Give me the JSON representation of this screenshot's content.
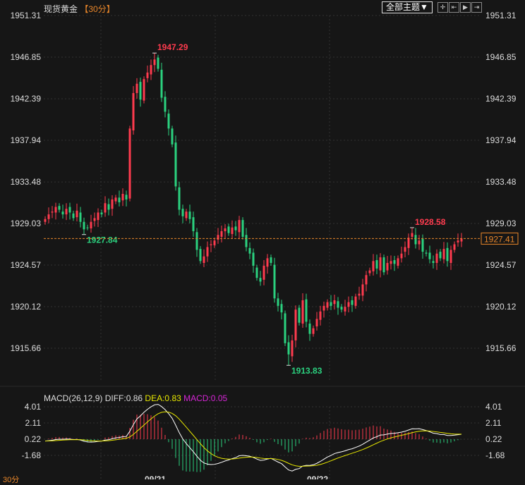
{
  "header": {
    "title": "现货黄金",
    "period": "【30分】",
    "theme_button": "全部主题▼",
    "tools": [
      {
        "icon": "crosshair-icon",
        "glyph": "✛"
      },
      {
        "icon": "zoom-range-icon",
        "glyph": "⇤"
      },
      {
        "icon": "step-forward-icon",
        "glyph": "▶"
      },
      {
        "icon": "jump-end-icon",
        "glyph": "⇥"
      }
    ]
  },
  "colors": {
    "up": "#ff3b4e",
    "down": "#2bd17f",
    "last_price": "#e8862a",
    "diff": "#ffffff",
    "dea": "#e8e800",
    "macd": "#d626d6"
  },
  "chart_data": [
    {
      "type": "candlestick",
      "title": "现货黄金",
      "ylim": [
        1913.0,
        1952.0
      ],
      "yticks": [
        "1951.31",
        "1946.85",
        "1942.39",
        "1937.94",
        "1933.48",
        "1929.03",
        "1924.57",
        "1920.12",
        "1915.66"
      ],
      "xticks": [
        "09/21",
        "09/22"
      ],
      "last_price": "1927.41",
      "annotations": [
        {
          "label": "1947.29",
          "kind": "high"
        },
        {
          "label": "1927.84",
          "kind": "low"
        },
        {
          "label": "1913.83",
          "kind": "low"
        },
        {
          "label": "1928.58",
          "kind": "high"
        }
      ],
      "close": [
        1929.5,
        1930,
        1930.3,
        1930.8,
        1930.5,
        1930,
        1930.6,
        1930.2,
        1929.6,
        1930.4,
        1929.2,
        1928.4,
        1928.6,
        1929.2,
        1929.6,
        1930.2,
        1930,
        1931.2,
        1930.5,
        1931.6,
        1931.8,
        1931.3,
        1932.2,
        1931.6,
        1939.2,
        1943,
        1944,
        1942.3,
        1944.5,
        1945.2,
        1946,
        1946.6,
        1945.6,
        1942.5,
        1941,
        1939.2,
        1937.5,
        1933,
        1930.5,
        1929.8,
        1930.3,
        1929.5,
        1928.2,
        1926.2,
        1925,
        1925.5,
        1926.5,
        1926.8,
        1927.2,
        1927.8,
        1928.2,
        1928.5,
        1928,
        1928.6,
        1928.3,
        1929.4,
        1927.6,
        1926.5,
        1925.8,
        1924.5,
        1923.2,
        1922.8,
        1924.5,
        1925.3,
        1924.8,
        1921,
        1920.2,
        1919.5,
        1916.2,
        1915,
        1916.5,
        1919.8,
        1918.4,
        1920.8,
        1918.5,
        1917.2,
        1917.8,
        1918.8,
        1919.6,
        1920.2,
        1920.6,
        1920.2,
        1920.8,
        1920,
        1919.8,
        1920.1,
        1920.6,
        1920.3,
        1921.2,
        1921.5,
        1922.5,
        1923.5,
        1924,
        1925,
        1924.2,
        1925.4,
        1923.8,
        1924.8,
        1925,
        1924.7,
        1925.3,
        1925.8,
        1926.5,
        1927.5,
        1928,
        1926.8,
        1927.2,
        1926,
        1925.8,
        1925.2,
        1924.8,
        1925.8,
        1925.3,
        1926.3,
        1925,
        1926.2,
        1926.8,
        1927.2,
        1927.41
      ]
    },
    {
      "type": "macd",
      "params": "MACD(26,12,9)",
      "diff_label": "DIFF:0.86",
      "dea_label": "DEA:0.83",
      "macd_label": "MACD:0.05",
      "ylim": [
        -3.0,
        4.2
      ],
      "yticks": [
        "4.01",
        "2.11",
        "0.22",
        "-1.68"
      ]
    }
  ],
  "footer": {
    "period_cut": "30分"
  }
}
